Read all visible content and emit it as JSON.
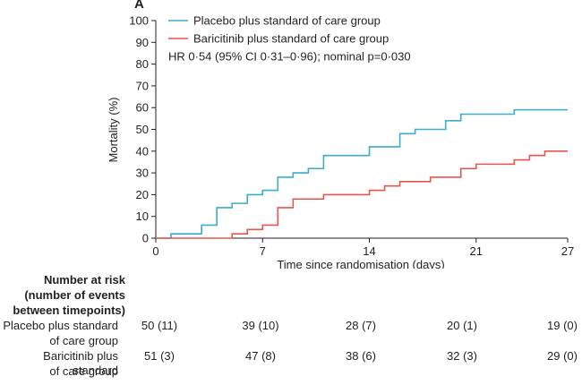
{
  "chart_data": {
    "type": "line",
    "step": true,
    "panel_label": "A",
    "ylabel": "Mortality (%)",
    "xlabel": "Time since randomisation (days)",
    "xlim": [
      0,
      27
    ],
    "ylim": [
      0,
      100
    ],
    "xticks": [
      0,
      7,
      14,
      21,
      27
    ],
    "yticks": [
      0,
      10,
      20,
      30,
      40,
      50,
      60,
      70,
      80,
      90,
      100
    ],
    "grid": false,
    "legend_position": "top-left",
    "annotation": "HR 0·54 (95% CI 0·31–0·96); nominal p=0·030",
    "series": [
      {
        "name": "Placebo plus standard of care group",
        "color": "#3aaccd",
        "x": [
          0,
          1,
          3,
          4,
          5,
          6,
          7,
          8,
          9,
          10,
          11,
          14,
          16,
          17,
          19,
          20,
          23.5,
          27
        ],
        "y": [
          0,
          2,
          6,
          14,
          16,
          20,
          22,
          28,
          30,
          32,
          38,
          42,
          48,
          50,
          54,
          57,
          59,
          59
        ]
      },
      {
        "name": "Baricitinib plus standard of care group",
        "color": "#e8564b",
        "x": [
          0,
          5,
          6,
          7,
          8,
          9,
          11,
          14,
          15,
          16,
          18,
          20,
          21,
          23.5,
          24.5,
          25.5,
          27
        ],
        "y": [
          0,
          2,
          4,
          6,
          14,
          18,
          20,
          22,
          24,
          26,
          28,
          32,
          34,
          36,
          38,
          40,
          40
        ]
      }
    ]
  },
  "risk_table": {
    "header": [
      "Number at risk",
      "(number of events",
      "between timepoints)"
    ],
    "rows": [
      {
        "label": [
          "Placebo plus standard",
          "of care group"
        ],
        "values": [
          "50 (11)",
          "39 (10)",
          "28 (7)",
          "20 (1)",
          "19 (0)"
        ]
      },
      {
        "label": [
          "Baricitinib plus standard",
          "of care group"
        ],
        "values": [
          "51 (3)",
          "47 (8)",
          "38 (6)",
          "32 (3)",
          "29 (0)"
        ]
      }
    ]
  }
}
